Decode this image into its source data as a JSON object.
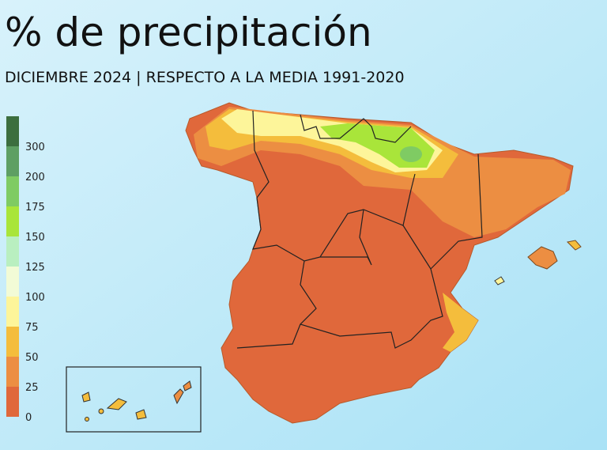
{
  "header": {
    "title": "% de precipitación",
    "subtitle": "DICIEMBRE 2024 | RESPECTO A LA MEDIA 1991-2020"
  },
  "legend": {
    "ticks": [
      0,
      25,
      50,
      75,
      100,
      125,
      150,
      175,
      200,
      300
    ],
    "colors": [
      "#e0683b",
      "#ec8e42",
      "#f4bd3c",
      "#fdf59a",
      "#f2fbd6",
      "#b9efc0",
      "#a9e53a",
      "#7fcb63",
      "#5e9f63",
      "#3c6e3e"
    ]
  }
}
